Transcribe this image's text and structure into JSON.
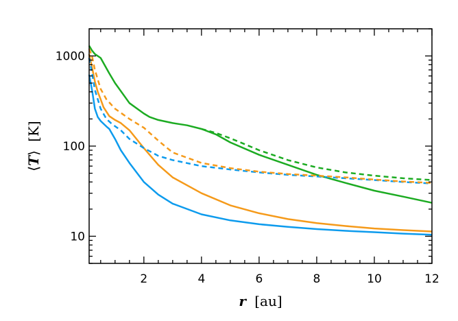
{
  "chart_data": {
    "type": "line",
    "title": "",
    "xlabel_var": "r",
    "xlabel_unit": "[au]",
    "ylabel_var": "T",
    "ylabel_unit": "[K]",
    "xlim": [
      0.1,
      12
    ],
    "ylim": [
      5,
      2000
    ],
    "yscale": "log",
    "grid": false,
    "legend": "none",
    "x_ticks": [
      2,
      4,
      6,
      8,
      10,
      12
    ],
    "x_tick_labels": [
      "2",
      "4",
      "6",
      "8",
      "10",
      "12"
    ],
    "y_ticks": [
      10,
      100,
      1000
    ],
    "y_tick_labels": [
      "10",
      "100",
      "1000"
    ],
    "series": [
      {
        "color": "#0d9bed",
        "style": "solid",
        "x": [
          0.1,
          0.2,
          0.3,
          0.4,
          0.5,
          0.7,
          0.8,
          1.0,
          1.2,
          1.5,
          2.0,
          2.5,
          3.0,
          4.0,
          5.0,
          6.0,
          7.0,
          8.0,
          9.0,
          10.0,
          11.0,
          12.0
        ],
        "y": [
          620,
          420,
          260,
          210,
          190,
          165,
          155,
          120,
          90,
          65,
          40,
          29,
          23,
          17.5,
          15,
          13.6,
          12.7,
          12,
          11.5,
          11.1,
          10.7,
          10.4
        ]
      },
      {
        "color": "#f59a1a",
        "style": "solid",
        "x": [
          0.1,
          0.2,
          0.3,
          0.4,
          0.5,
          0.6,
          0.8,
          1.0,
          1.2,
          1.5,
          2.0,
          2.5,
          3.0,
          4.0,
          5.0,
          6.0,
          7.0,
          8.0,
          9.0,
          10.0,
          11.0,
          12.0
        ],
        "y": [
          1050,
          750,
          520,
          400,
          330,
          270,
          215,
          195,
          180,
          150,
          95,
          62,
          45,
          30,
          22,
          18,
          15.5,
          14,
          13,
          12.2,
          11.7,
          11.3
        ]
      },
      {
        "color": "#1cab22",
        "style": "solid",
        "x": [
          0.1,
          0.2,
          0.3,
          0.5,
          0.8,
          1.0,
          1.5,
          2.0,
          2.2,
          2.5,
          3.0,
          3.5,
          4.0,
          4.5,
          5.0,
          6.0,
          7.0,
          8.0,
          9.0,
          10.0,
          11.0,
          12.0
        ],
        "y": [
          1300,
          1150,
          1050,
          950,
          640,
          500,
          300,
          230,
          210,
          195,
          180,
          170,
          155,
          135,
          110,
          80,
          62,
          48,
          39,
          32,
          27.5,
          23.5
        ]
      },
      {
        "color": "#0d9bed",
        "style": "dashed",
        "x": [
          0.1,
          0.2,
          0.3,
          0.5,
          0.7,
          0.9,
          1.2,
          1.5,
          2.0,
          2.5,
          3.0,
          4.0,
          5.0,
          6.0,
          7.0,
          8.0,
          9.0,
          10.0,
          11.0,
          12.0
        ],
        "y": [
          950,
          650,
          420,
          260,
          200,
          175,
          150,
          120,
          95,
          78,
          70,
          60,
          55,
          51,
          48,
          46,
          44,
          42,
          40,
          38.5
        ]
      },
      {
        "color": "#f59a1a",
        "style": "dashed",
        "x": [
          0.1,
          0.2,
          0.3,
          0.5,
          0.7,
          1.0,
          1.5,
          2.0,
          2.5,
          3.0,
          4.0,
          5.0,
          6.0,
          7.0,
          8.0,
          9.0,
          10.0,
          11.0,
          12.0
        ],
        "y": [
          1200,
          1000,
          700,
          430,
          330,
          260,
          200,
          160,
          115,
          85,
          65,
          57,
          52,
          49,
          47,
          45,
          42.5,
          40.5,
          39
        ]
      },
      {
        "color": "#1cab22",
        "style": "dashed",
        "x": [
          4.0,
          4.5,
          5.0,
          5.5,
          6.0,
          7.0,
          8.0,
          9.0,
          10.0,
          11.0,
          12.0
        ],
        "y": [
          155,
          140,
          122,
          105,
          90,
          70,
          58,
          51,
          47,
          44,
          42
        ]
      }
    ]
  }
}
